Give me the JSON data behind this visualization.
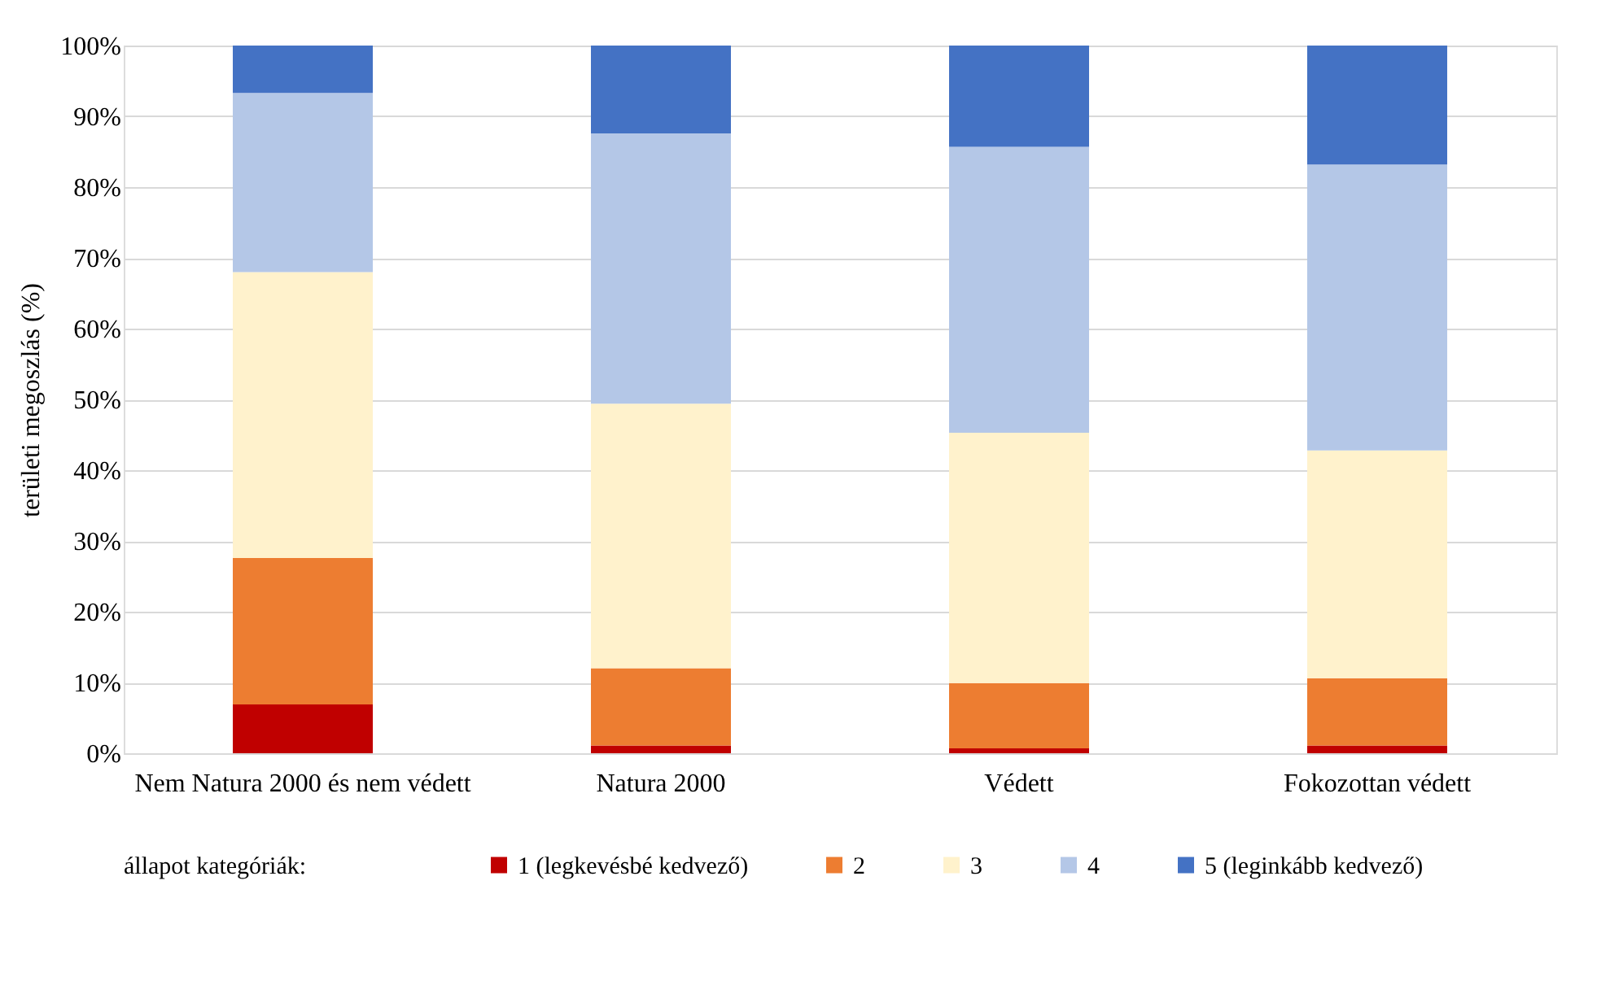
{
  "chart_data": {
    "type": "bar",
    "stacked": true,
    "ylabel": "területi megoszlás (%)",
    "legend_title": "állapot kategóriák:",
    "legend": "bottom",
    "grid": "y",
    "categories": [
      "Nem Natura 2000 és nem védett",
      "Natura 2000",
      "Védett",
      "Fokozottan védett"
    ],
    "series": [
      {
        "name": "1 (legkevésbé kedvező)",
        "color": "#c00000",
        "values": [
          6.9,
          1.1,
          0.7,
          1.1
        ]
      },
      {
        "name": "2",
        "color": "#ed7d31",
        "values": [
          20.7,
          10.9,
          9.2,
          9.5
        ]
      },
      {
        "name": "3",
        "color": "#fff2cc",
        "values": [
          40.4,
          37.4,
          35.4,
          32.2
        ]
      },
      {
        "name": "4",
        "color": "#b4c7e7",
        "values": [
          25.3,
          38.2,
          40.4,
          40.4
        ]
      },
      {
        "name": "5 (leginkább kedvező)",
        "color": "#4472c4",
        "values": [
          6.7,
          12.4,
          14.3,
          16.8
        ]
      }
    ],
    "ylim": [
      0,
      100
    ],
    "yticks": [
      {
        "value": 0,
        "label": "0%"
      },
      {
        "value": 10,
        "label": "10%"
      },
      {
        "value": 20,
        "label": "20%"
      },
      {
        "value": 30,
        "label": "30%"
      },
      {
        "value": 40,
        "label": "40%"
      },
      {
        "value": 50,
        "label": "50%"
      },
      {
        "value": 60,
        "label": "60%"
      },
      {
        "value": 70,
        "label": "70%"
      },
      {
        "value": 80,
        "label": "80%"
      },
      {
        "value": 90,
        "label": "90%"
      },
      {
        "value": 100,
        "label": "100%"
      }
    ]
  }
}
